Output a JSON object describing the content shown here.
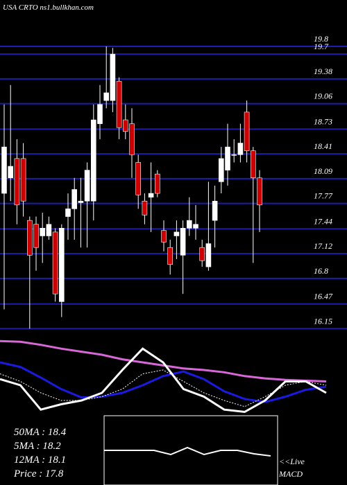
{
  "chart_data": {
    "type": "candlestick",
    "title": "USA CRTO ns1.bullkhan.com",
    "ylim": [
      16.1,
      20.4
    ],
    "yticks": [
      19.8,
      19.7,
      19.38,
      19.06,
      18.73,
      18.41,
      18.09,
      17.77,
      17.44,
      17.12,
      16.8,
      16.47,
      16.15
    ],
    "up_color": "#ffffff",
    "down_color": "#cc0000",
    "grid_color": "#1e1ea8",
    "open": [
      17.9,
      18.1,
      18.35,
      18.35,
      17.55,
      17.5,
      17.35,
      17.35,
      17.4,
      16.5,
      17.6,
      17.7,
      17.78,
      17.8,
      17.8,
      18.8,
      19.1,
      19.1,
      19.35,
      18.85,
      18.8,
      18.3,
      17.8,
      17.85,
      18.15,
      17.42,
      17.2,
      17.35,
      17.1,
      17.45,
      17.45,
      17.2,
      16.95,
      17.55,
      18.05,
      18.2,
      18.4,
      18.4,
      18.95,
      18.45,
      18.1
    ],
    "high": [
      19.05,
      19.3,
      18.6,
      18.55,
      17.6,
      17.6,
      17.65,
      17.6,
      17.45,
      17.5,
      17.9,
      18.1,
      18.1,
      18.3,
      19.05,
      19.3,
      19.8,
      19.78,
      19.4,
      19.05,
      19.0,
      18.4,
      17.9,
      18.3,
      18.2,
      17.55,
      17.3,
      17.55,
      17.55,
      17.85,
      17.75,
      17.3,
      18.05,
      18.0,
      18.5,
      18.8,
      18.6,
      18.8,
      19.1,
      18.5,
      18.2
    ],
    "low": [
      16.4,
      17.8,
      17.5,
      17.6,
      16.15,
      16.9,
      17.0,
      17.3,
      16.5,
      16.3,
      17.3,
      17.3,
      17.2,
      17.2,
      17.55,
      18.6,
      19.0,
      18.95,
      18.6,
      18.6,
      18.1,
      17.7,
      17.5,
      17.4,
      17.85,
      17.15,
      16.85,
      17.05,
      16.6,
      17.35,
      17.3,
      16.95,
      16.9,
      17.2,
      17.9,
      18.0,
      18.3,
      18.3,
      18.3,
      17.0,
      17.4
    ],
    "close": [
      18.5,
      18.25,
      17.75,
      17.8,
      17.1,
      17.2,
      17.45,
      17.5,
      16.6,
      17.45,
      17.7,
      17.95,
      17.8,
      18.2,
      18.85,
      19.05,
      19.2,
      19.7,
      18.75,
      18.7,
      18.4,
      17.88,
      17.62,
      17.9,
      17.9,
      17.27,
      16.98,
      17.4,
      17.45,
      17.55,
      17.5,
      17.03,
      17.25,
      17.8,
      18.35,
      18.5,
      18.4,
      18.55,
      18.45,
      18.1,
      17.75
    ],
    "indicator": {
      "ylim": [
        0,
        100
      ],
      "series": [
        {
          "color": "#d868d8",
          "values": [
            98,
            97,
            93,
            88,
            84,
            80,
            74,
            70,
            66,
            62,
            60,
            57,
            52,
            49,
            47,
            46,
            45
          ]
        },
        {
          "color": "#1a1ae0",
          "values": [
            70,
            64,
            50,
            35,
            24,
            25,
            30,
            40,
            52,
            58,
            48,
            32,
            22,
            18,
            25,
            34,
            38
          ]
        },
        {
          "color": "#ffffff",
          "values": [
            48,
            40,
            8,
            15,
            20,
            30,
            60,
            88,
            70,
            35,
            25,
            8,
            5,
            20,
            45,
            45,
            30
          ]
        },
        {
          "color": "#ffffff",
          "dashed": true,
          "values": [
            55,
            45,
            30,
            20,
            20,
            25,
            35,
            55,
            60,
            45,
            30,
            20,
            12,
            25,
            40,
            45,
            40
          ]
        }
      ]
    },
    "macd": {
      "ylim": [
        -50,
        50
      ],
      "values": [
        0,
        0,
        0,
        0,
        -6,
        4,
        -6,
        0,
        0,
        -5,
        -8
      ]
    },
    "labels": [
      "50MA : 18.4",
      "5MA : 18.2",
      "12MA : 18.1",
      "Price  : 17.8"
    ],
    "live": "<<Live",
    "macd_label": "MACD"
  }
}
